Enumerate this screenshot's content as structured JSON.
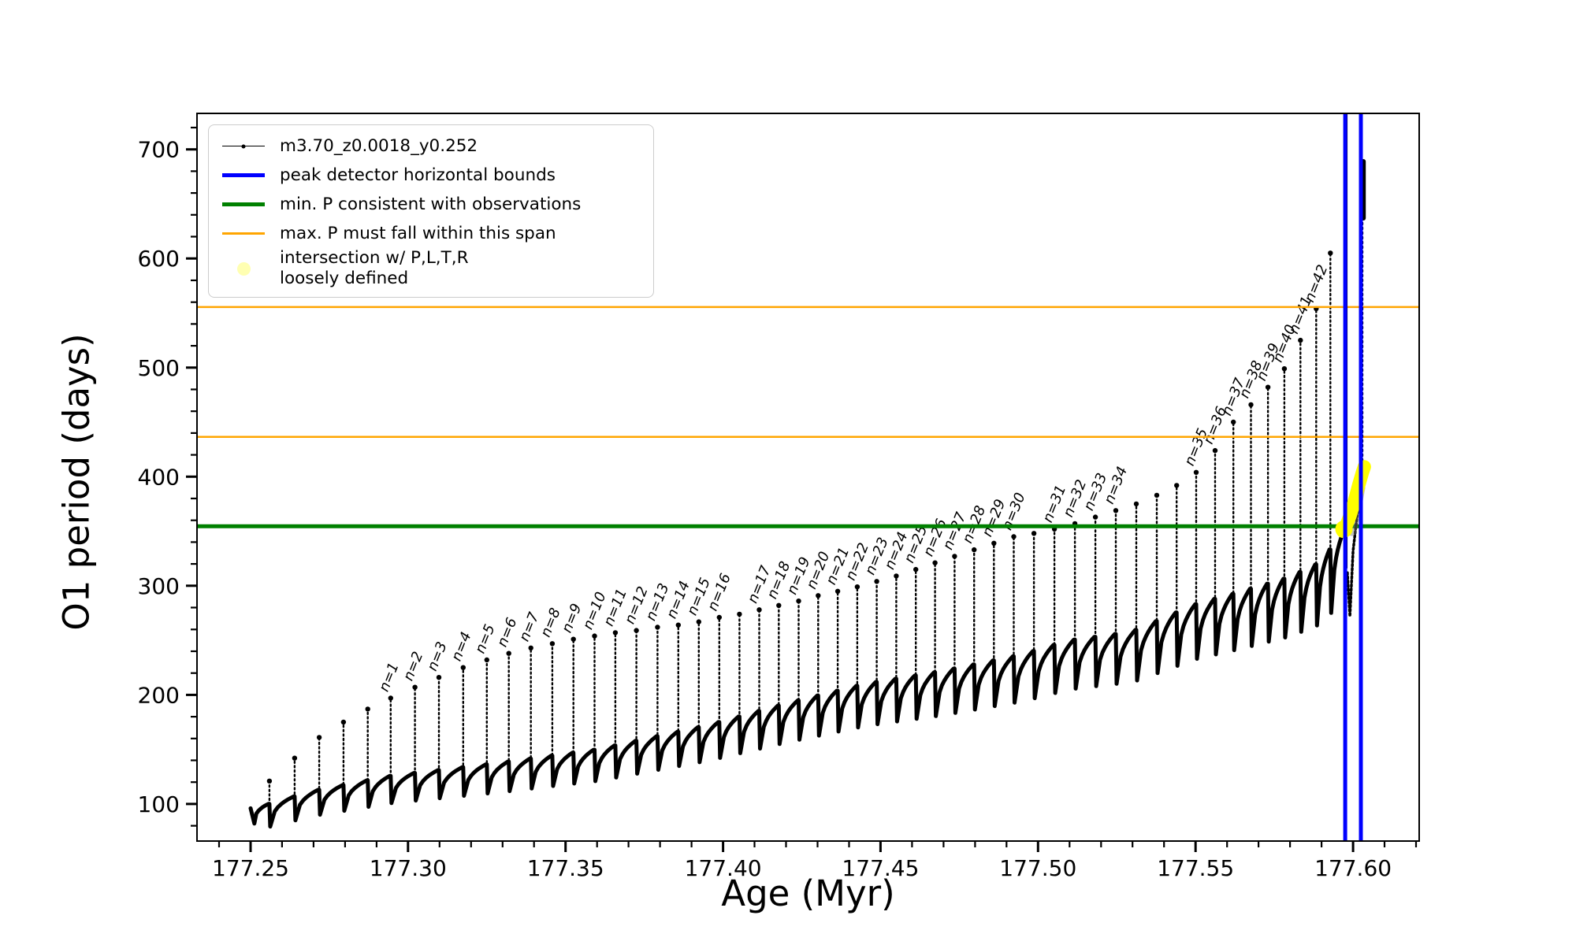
{
  "figure": {
    "background": "#ffffff"
  },
  "legend": {
    "border_color": "#cccccc",
    "items": [
      {
        "label": "m3.70_z0.0018_y0.252",
        "color": "#000000",
        "swatch": "line-dot"
      },
      {
        "label": "peak detector horizontal bounds",
        "color": "#0000ff",
        "swatch": "thick-line"
      },
      {
        "label": "min. P consistent with observations",
        "color": "#008000",
        "swatch": "thick-line"
      },
      {
        "label": "max. P must fall within this span",
        "color": "#ffa500",
        "swatch": "line"
      },
      {
        "label": "intersection w/ P,L,T,R\nloosely defined",
        "color": "rgba(255,255,0,0.3)",
        "swatch": "circle"
      }
    ]
  },
  "chart_data": {
    "type": "line",
    "title": "",
    "xlabel": "Age (Myr)",
    "ylabel": "O1 period (days)",
    "xlim": [
      177.233,
      177.621
    ],
    "ylim": [
      66,
      733
    ],
    "grid": false,
    "legend_position": "upper left",
    "x_major_ticks": [
      {
        "value": 177.25,
        "label": "177.25"
      },
      {
        "value": 177.3,
        "label": "177.30"
      },
      {
        "value": 177.35,
        "label": "177.35"
      },
      {
        "value": 177.4,
        "label": "177.40"
      },
      {
        "value": 177.45,
        "label": "177.45"
      },
      {
        "value": 177.5,
        "label": "177.50"
      },
      {
        "value": 177.55,
        "label": "177.55"
      },
      {
        "value": 177.6,
        "label": "177.60"
      }
    ],
    "x_minor_ticks": {
      "start": 177.24,
      "end": 177.62,
      "step": 0.01
    },
    "y_major_ticks": [
      {
        "value": 100,
        "label": "100"
      },
      {
        "value": 200,
        "label": "200"
      },
      {
        "value": 300,
        "label": "300"
      },
      {
        "value": 400,
        "label": "400"
      },
      {
        "value": 500,
        "label": "500"
      },
      {
        "value": 600,
        "label": "600"
      },
      {
        "value": 700,
        "label": "700"
      }
    ],
    "y_minor_ticks": {
      "start": 80,
      "end": 720,
      "step": 20
    },
    "series_label": "m3.70_z0.0018_y0.252",
    "line_color": "#000000",
    "base_trend": [
      [
        177.25,
        95
      ],
      [
        177.27,
        112
      ],
      [
        177.295,
        126
      ],
      [
        177.33,
        138
      ],
      [
        177.36,
        150
      ],
      [
        177.395,
        172
      ],
      [
        177.42,
        192
      ],
      [
        177.445,
        210
      ],
      [
        177.47,
        222
      ],
      [
        177.495,
        237
      ],
      [
        177.51,
        250
      ],
      [
        177.53,
        258
      ],
      [
        177.55,
        283
      ],
      [
        177.565,
        295
      ],
      [
        177.58,
        308
      ],
      [
        177.59,
        322
      ],
      [
        177.5965,
        348
      ]
    ],
    "curve_start": [
      177.25,
      96
    ],
    "spikes": [
      {
        "age": 177.256,
        "peak": 121
      },
      {
        "age": 177.264,
        "peak": 142
      },
      {
        "age": 177.2718,
        "peak": 161
      },
      {
        "age": 177.2795,
        "peak": 175
      },
      {
        "age": 177.2872,
        "peak": 187
      },
      {
        "age": 177.2945,
        "peak": 197,
        "label": "n=1"
      },
      {
        "age": 177.3022,
        "peak": 207,
        "label": "n=2"
      },
      {
        "age": 177.3098,
        "peak": 216,
        "label": "n=3"
      },
      {
        "age": 177.3175,
        "peak": 225,
        "label": "n=4"
      },
      {
        "age": 177.325,
        "peak": 232,
        "label": "n=5"
      },
      {
        "age": 177.332,
        "peak": 238,
        "label": "n=6"
      },
      {
        "age": 177.339,
        "peak": 243,
        "label": "n=7"
      },
      {
        "age": 177.3458,
        "peak": 247,
        "label": "n=8"
      },
      {
        "age": 177.3525,
        "peak": 251,
        "label": "n=9"
      },
      {
        "age": 177.3592,
        "peak": 254,
        "label": "n=10"
      },
      {
        "age": 177.3658,
        "peak": 257,
        "label": "n=11"
      },
      {
        "age": 177.3725,
        "peak": 259,
        "label": "n=12"
      },
      {
        "age": 177.3792,
        "peak": 262,
        "label": "n=13"
      },
      {
        "age": 177.3858,
        "peak": 264,
        "label": "n=14"
      },
      {
        "age": 177.3923,
        "peak": 267,
        "label": "n=15"
      },
      {
        "age": 177.3988,
        "peak": 271,
        "label": "n=16"
      },
      {
        "age": 177.4052,
        "peak": 274
      },
      {
        "age": 177.4115,
        "peak": 278,
        "label": "n=17"
      },
      {
        "age": 177.4177,
        "peak": 282,
        "label": "n=18"
      },
      {
        "age": 177.424,
        "peak": 286,
        "label": "n=19"
      },
      {
        "age": 177.4302,
        "peak": 291,
        "label": "n=20"
      },
      {
        "age": 177.4364,
        "peak": 295,
        "label": "n=21"
      },
      {
        "age": 177.4426,
        "peak": 299,
        "label": "n=22"
      },
      {
        "age": 177.4488,
        "peak": 304,
        "label": "n=23"
      },
      {
        "age": 177.455,
        "peak": 309,
        "label": "n=24"
      },
      {
        "age": 177.4612,
        "peak": 315,
        "label": "n=25"
      },
      {
        "age": 177.4673,
        "peak": 321,
        "label": "n=26"
      },
      {
        "age": 177.4735,
        "peak": 327,
        "label": "n=27"
      },
      {
        "age": 177.4797,
        "peak": 333,
        "label": "n=28"
      },
      {
        "age": 177.486,
        "peak": 339,
        "label": "n=29"
      },
      {
        "age": 177.4923,
        "peak": 345,
        "label": "n=30"
      },
      {
        "age": 177.4987,
        "peak": 348
      },
      {
        "age": 177.5052,
        "peak": 352,
        "label": "n=31"
      },
      {
        "age": 177.5117,
        "peak": 357,
        "label": "n=32"
      },
      {
        "age": 177.5182,
        "peak": 363,
        "label": "n=33"
      },
      {
        "age": 177.5247,
        "peak": 369,
        "label": "n=34"
      },
      {
        "age": 177.5312,
        "peak": 375
      },
      {
        "age": 177.5377,
        "peak": 383
      },
      {
        "age": 177.544,
        "peak": 392
      },
      {
        "age": 177.5502,
        "peak": 404,
        "label": "n=35"
      },
      {
        "age": 177.5562,
        "peak": 424,
        "label": "n=36"
      },
      {
        "age": 177.562,
        "peak": 450,
        "label": "n=37"
      },
      {
        "age": 177.5676,
        "peak": 466,
        "label": "n=38"
      },
      {
        "age": 177.573,
        "peak": 482,
        "label": "n=39"
      },
      {
        "age": 177.5782,
        "peak": 499,
        "label": "n=40"
      },
      {
        "age": 177.5833,
        "peak": 525,
        "label": "n=41"
      },
      {
        "age": 177.5883,
        "peak": 554,
        "label": "n=42"
      },
      {
        "age": 177.5928,
        "peak": 605
      }
    ],
    "hlines": [
      {
        "value": 354.5,
        "color": "#008000",
        "width": 5,
        "name": "min-P-consistent"
      },
      {
        "value": 436.5,
        "color": "#ffa500",
        "width": 2.5,
        "name": "max-P-span-lower"
      },
      {
        "value": 555.5,
        "color": "#ffa500",
        "width": 2.5,
        "name": "max-P-span-upper"
      }
    ],
    "vlines": [
      {
        "value": 177.5975,
        "color": "#0000ff",
        "width": 5,
        "name": "peak-bound-left"
      },
      {
        "value": 177.6025,
        "color": "#0000ff",
        "width": 5,
        "name": "peak-bound-right"
      }
    ],
    "final_rise": {
      "age": 177.5978,
      "from": 316,
      "to": 733,
      "width": 3.5
    },
    "post_dip": [
      [
        177.5982,
        312
      ],
      [
        177.599,
        272
      ],
      [
        177.6,
        332
      ],
      [
        177.6012,
        362
      ],
      [
        177.603,
        404
      ]
    ],
    "post_vline": {
      "age": 177.603,
      "from": 406,
      "to": 642
    },
    "terminal_blob": {
      "age": 177.6033,
      "from": 637,
      "to": 689,
      "width": 6
    },
    "ghost": {
      "points": [
        [
          177.5996,
          350
        ],
        [
          177.6012,
          372
        ],
        [
          177.6024,
          390
        ]
      ],
      "color": "rgba(120,120,120,0.45)",
      "width": 12
    },
    "intersection": {
      "points": [
        [
          177.5968,
          350
        ],
        [
          177.5978,
          355
        ],
        [
          177.599,
          364
        ],
        [
          177.6004,
          377
        ],
        [
          177.6018,
          392
        ],
        [
          177.603,
          404
        ],
        [
          177.6036,
          409
        ]
      ],
      "color": "#ffff00",
      "width": 17
    }
  }
}
